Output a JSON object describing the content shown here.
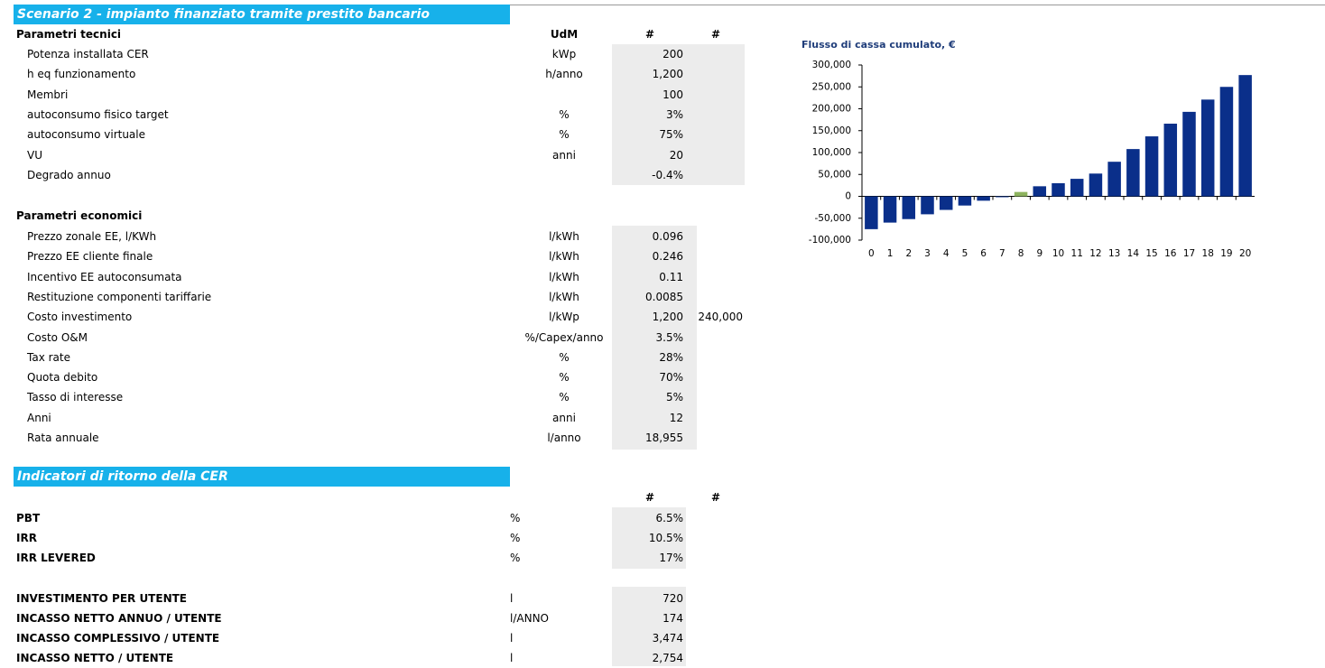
{
  "header": {
    "title": "Scenario 2 - impianto finanziato tramite prestito bancario"
  },
  "technical": {
    "heading": "Parametri tecnici",
    "columns": [
      "UdM",
      "#",
      "#"
    ],
    "rows": [
      {
        "label": "Potenza installata CER",
        "unit": "kWp",
        "value": "200"
      },
      {
        "label": "h eq funzionamento",
        "unit": "h/anno",
        "value": "1,200"
      },
      {
        "label": "Membri",
        "value": "100"
      },
      {
        "label": "autoconsumo fisico target",
        "unit": "%",
        "value": "3%"
      },
      {
        "label": "autoconsumo virtuale",
        "unit": "%",
        "value": "75%"
      },
      {
        "label": "VU",
        "unit": "anni",
        "value": "20"
      },
      {
        "label": "Degrado annuo",
        "value": "-0.4%"
      }
    ]
  },
  "economic": {
    "heading": "Parametri economici",
    "rows": [
      {
        "label": "Prezzo zonale EE, l/KWh",
        "unit": "l/kWh",
        "value": "0.096"
      },
      {
        "label": "Prezzo EE cliente finale",
        "unit": "l/kWh",
        "value": "0.246"
      },
      {
        "label": "Incentivo EE autoconsumata",
        "unit": "l/kWh",
        "value": "0.11"
      },
      {
        "label": "Restituzione componenti tariffarie",
        "unit": "l/kWh",
        "value": "0.0085"
      },
      {
        "label": "Costo investimento",
        "unit": "l/kWp",
        "value": "1,200",
        "extra": "240,000"
      },
      {
        "label": "Costo O&M",
        "unit": "%/Capex/anno",
        "value": "3.5%"
      },
      {
        "label": "Tax rate",
        "unit": "%",
        "value": "28%"
      },
      {
        "label": "Quota debito",
        "unit": "%",
        "value": "70%"
      },
      {
        "label": "Tasso di interesse",
        "unit": "%",
        "value": "5%"
      },
      {
        "label": "Anni",
        "unit": "anni",
        "value": "12"
      },
      {
        "label": "Rata annuale",
        "unit": "l/anno",
        "value": "18,955"
      }
    ]
  },
  "indicators": {
    "title": "Indicatori di ritorno della CER",
    "columns": [
      "#",
      "#"
    ],
    "returns": [
      {
        "label": "PBT",
        "unit": "%",
        "value": "6.5%"
      },
      {
        "label": "IRR",
        "unit": "%",
        "value": "10.5%"
      },
      {
        "label": "IRR LEVERED",
        "unit": "%",
        "value": "17%"
      }
    ],
    "per_user": [
      {
        "label": "INVESTIMENTO PER UTENTE",
        "unit": "l",
        "value": "720"
      },
      {
        "label": "INCASSO NETTO ANNUO / UTENTE",
        "unit": "l/ANNO",
        "value": "174"
      },
      {
        "label": "INCASSO COMPLESSIVO / UTENTE",
        "unit": "l",
        "value": "3,474"
      },
      {
        "label": "INCASSO NETTO / UTENTE",
        "unit": "l",
        "value": "2,754"
      }
    ]
  },
  "chart_data": {
    "type": "bar",
    "title": "Flusso di cassa cumulato, €",
    "categories": [
      "0",
      "1",
      "2",
      "3",
      "4",
      "5",
      "6",
      "7",
      "8",
      "9",
      "10",
      "11",
      "12",
      "13",
      "14",
      "15",
      "16",
      "17",
      "18",
      "19",
      "20"
    ],
    "values": [
      -75000,
      -60000,
      -52000,
      -41000,
      -31000,
      -21000,
      -10000,
      -2000,
      10000,
      23000,
      30000,
      40000,
      52000,
      79000,
      108000,
      137000,
      166000,
      193000,
      221000,
      250000,
      277000
    ],
    "colors": [
      "#0a2f8a",
      "#0a2f8a",
      "#0a2f8a",
      "#0a2f8a",
      "#0a2f8a",
      "#0a2f8a",
      "#0a2f8a",
      "#0a2f8a",
      "#8db35e",
      "#0a2f8a",
      "#0a2f8a",
      "#0a2f8a",
      "#0a2f8a",
      "#0a2f8a",
      "#0a2f8a",
      "#0a2f8a",
      "#0a2f8a",
      "#0a2f8a",
      "#0a2f8a",
      "#0a2f8a",
      "#0a2f8a"
    ],
    "ylim": [
      -100000,
      300000
    ],
    "yticks": [
      {
        "value": -100000,
        "label": "-100,000"
      },
      {
        "value": -50000,
        "label": "-50,000"
      },
      0,
      {
        "value": 50000,
        "label": "50,000"
      },
      {
        "value": 100000,
        "label": "100,000"
      },
      {
        "value": 150000,
        "label": "150,000"
      },
      {
        "value": 200000,
        "label": "200,000"
      },
      {
        "value": 250000,
        "label": "250,000"
      },
      {
        "value": 300000,
        "label": "300,000"
      }
    ]
  }
}
